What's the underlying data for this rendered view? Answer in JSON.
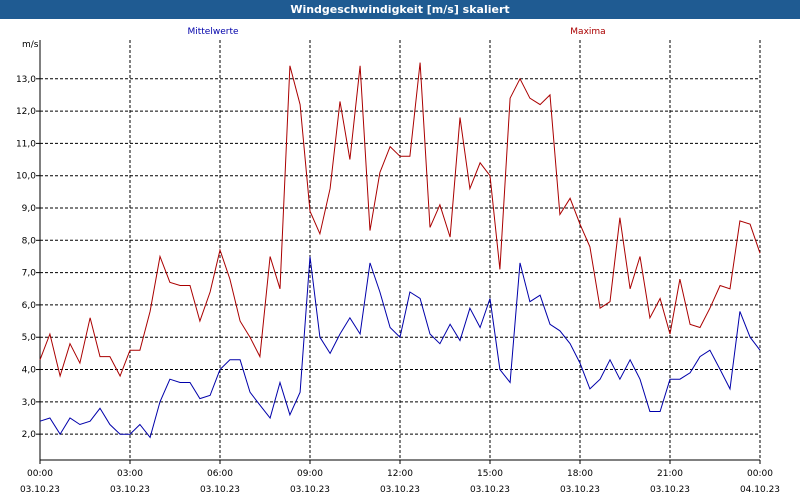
{
  "window": {
    "title": "Windgeschwindigkeit [m/s] skaliert"
  },
  "chart_data": {
    "type": "line",
    "title": "Windgeschwindigkeit [m/s] skaliert",
    "ylabel": "m/s",
    "xlabel": "",
    "ylim": [
      1.2,
      14.2
    ],
    "xlim": [
      0,
      24
    ],
    "grid": true,
    "yticks": [
      2.0,
      3.0,
      4.0,
      5.0,
      6.0,
      7.0,
      8.0,
      9.0,
      10.0,
      11.0,
      12.0,
      13.0
    ],
    "ytick_labels": [
      "2,0",
      "3,0",
      "4,0",
      "5,0",
      "6,0",
      "7,0",
      "8,0",
      "9,0",
      "10,0",
      "11,0",
      "12,0",
      "13,0"
    ],
    "xticks": [
      {
        "x": 0,
        "time": "00:00",
        "date": "03.10.23"
      },
      {
        "x": 3,
        "time": "03:00",
        "date": "03.10.23"
      },
      {
        "x": 6,
        "time": "06:00",
        "date": "03.10.23"
      },
      {
        "x": 9,
        "time": "09:00",
        "date": "03.10.23"
      },
      {
        "x": 12,
        "time": "12:00",
        "date": "03.10.23"
      },
      {
        "x": 15,
        "time": "15:00",
        "date": "03.10.23"
      },
      {
        "x": 18,
        "time": "18:00",
        "date": "03.10.23"
      },
      {
        "x": 21,
        "time": "21:00",
        "date": "03.10.23"
      },
      {
        "x": 24,
        "time": "00:00",
        "date": "04.10.23"
      }
    ],
    "series": [
      {
        "name": "Mittelwerte",
        "color": "#0000aa",
        "x": [
          0,
          0.33,
          0.67,
          1,
          1.33,
          1.67,
          2,
          2.33,
          2.67,
          3,
          3.33,
          3.67,
          4,
          4.33,
          4.67,
          5,
          5.33,
          5.67,
          6,
          6.33,
          6.67,
          7,
          7.33,
          7.67,
          8,
          8.33,
          8.67,
          9,
          9.33,
          9.67,
          10,
          10.33,
          10.67,
          11,
          11.33,
          11.67,
          12,
          12.33,
          12.67,
          13,
          13.33,
          13.67,
          14,
          14.33,
          14.67,
          15,
          15.33,
          15.67,
          16,
          16.33,
          16.67,
          17,
          17.33,
          17.67,
          18,
          18.33,
          18.67,
          19,
          19.33,
          19.67,
          20,
          20.33,
          20.67,
          21,
          21.33,
          21.67,
          22,
          22.33,
          22.67,
          23,
          23.33,
          23.67,
          24
        ],
        "values": [
          2.4,
          2.5,
          2.0,
          2.5,
          2.3,
          2.4,
          2.8,
          2.3,
          2.0,
          2.0,
          2.3,
          1.9,
          3.0,
          3.7,
          3.6,
          3.6,
          3.1,
          3.2,
          4.0,
          4.3,
          4.3,
          3.3,
          2.9,
          2.5,
          3.6,
          2.6,
          3.3,
          7.5,
          5.0,
          4.5,
          5.1,
          5.6,
          5.1,
          7.3,
          6.4,
          5.3,
          5.0,
          6.4,
          6.2,
          5.1,
          4.8,
          5.4,
          4.9,
          5.9,
          5.3,
          6.2,
          4.0,
          3.6,
          7.3,
          6.1,
          6.3,
          5.4,
          5.2,
          4.8,
          4.2,
          3.4,
          3.7,
          4.3,
          3.7,
          4.3,
          3.7,
          2.7,
          2.7,
          3.7,
          3.7,
          3.9,
          4.4,
          4.6,
          4.0,
          3.4,
          5.8,
          5.0,
          4.6
        ]
      },
      {
        "name": "Maxima",
        "color": "#aa0000",
        "x": [
          0,
          0.33,
          0.67,
          1,
          1.33,
          1.67,
          2,
          2.33,
          2.67,
          3,
          3.33,
          3.67,
          4,
          4.33,
          4.67,
          5,
          5.33,
          5.67,
          6,
          6.33,
          6.67,
          7,
          7.33,
          7.67,
          8,
          8.33,
          8.67,
          9,
          9.33,
          9.67,
          10,
          10.33,
          10.67,
          11,
          11.33,
          11.67,
          12,
          12.33,
          12.67,
          13,
          13.33,
          13.67,
          14,
          14.33,
          14.67,
          15,
          15.33,
          15.67,
          16,
          16.33,
          16.67,
          17,
          17.33,
          17.67,
          18,
          18.33,
          18.67,
          19,
          19.33,
          19.67,
          20,
          20.33,
          20.67,
          21,
          21.33,
          21.67,
          22,
          22.33,
          22.67,
          23,
          23.33,
          23.67,
          24
        ],
        "values": [
          4.3,
          5.1,
          3.8,
          4.8,
          4.2,
          5.6,
          4.4,
          4.4,
          3.8,
          4.6,
          4.6,
          5.8,
          7.5,
          6.7,
          6.6,
          6.6,
          5.5,
          6.4,
          7.7,
          6.8,
          5.5,
          5.0,
          4.4,
          7.5,
          6.5,
          13.4,
          12.2,
          8.9,
          8.2,
          9.6,
          12.3,
          10.5,
          13.4,
          8.3,
          10.1,
          10.9,
          10.6,
          10.6,
          13.5,
          8.4,
          9.1,
          8.1,
          11.8,
          9.6,
          10.4,
          10.0,
          7.1,
          12.4,
          13.0,
          12.4,
          12.2,
          12.5,
          8.8,
          9.3,
          8.5,
          7.8,
          5.9,
          6.1,
          8.7,
          6.5,
          7.5,
          5.6,
          6.2,
          5.1,
          6.8,
          5.4,
          5.3,
          5.9,
          6.6,
          6.5,
          8.6,
          8.5,
          7.6
        ]
      }
    ]
  }
}
